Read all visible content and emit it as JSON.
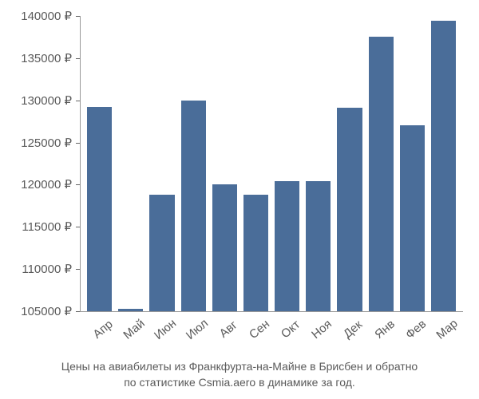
{
  "chart": {
    "type": "bar",
    "categories": [
      "Апр",
      "Май",
      "Июн",
      "Июл",
      "Авг",
      "Сен",
      "Окт",
      "Ноя",
      "Дек",
      "Янв",
      "Фев",
      "Мар"
    ],
    "values": [
      129200,
      105300,
      118800,
      130000,
      120000,
      118800,
      120400,
      120400,
      129100,
      137500,
      127000,
      139400
    ],
    "bar_color": "#4a6d99",
    "background_color": "#ffffff",
    "y_axis": {
      "min": 105000,
      "max": 140000,
      "tick_step": 5000,
      "ticks": [
        105000,
        110000,
        115000,
        120000,
        125000,
        130000,
        135000,
        140000
      ],
      "tick_labels": [
        "105000 ₽",
        "110000 ₽",
        "115000 ₽",
        "120000 ₽",
        "125000 ₽",
        "130000 ₽",
        "135000 ₽",
        "140000 ₽"
      ],
      "label_color": "#5a5a5a",
      "label_fontsize": 15
    },
    "x_axis": {
      "label_color": "#5a5a5a",
      "label_fontsize": 15,
      "label_rotation": -40
    },
    "caption_line1": "Цены на авиабилеты из Франкфурта-на-Майне в Брисбен и обратно",
    "caption_line2": "по статистике Csmia.aero в динамике за год.",
    "caption_color": "#5a5a5a",
    "caption_fontsize": 14,
    "bar_gap_ratio": 0.2
  }
}
